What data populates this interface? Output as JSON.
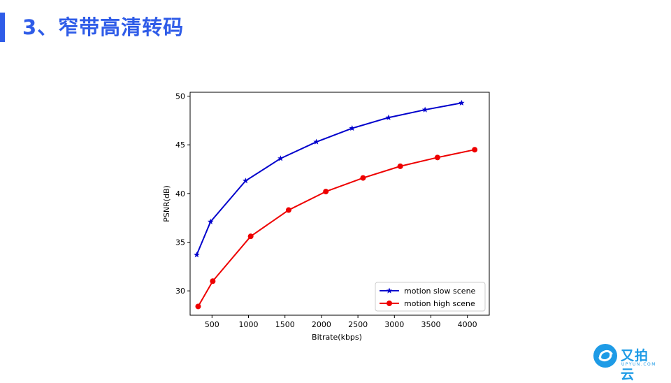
{
  "slide": {
    "title": "3、窄带高清转码"
  },
  "logo": {
    "name": "又拍云",
    "sub": "UPYUN.COM"
  },
  "chart_data": {
    "type": "line",
    "xlabel": "Bitrate(kbps)",
    "ylabel": "PSNR(dB)",
    "xlim": [
      200,
      4300
    ],
    "ylim": [
      27.5,
      50.4
    ],
    "xticks": [
      500,
      1000,
      1500,
      2000,
      2500,
      3000,
      3500,
      4000
    ],
    "yticks": [
      30,
      35,
      40,
      45,
      50
    ],
    "grid": false,
    "legend_position": "lower-right",
    "series": [
      {
        "name": "motion slow scene",
        "color": "#0000cc",
        "marker": "star",
        "x": [
          290,
          480,
          960,
          1440,
          1930,
          2420,
          2920,
          3420,
          3920
        ],
        "y": [
          33.7,
          37.1,
          41.3,
          43.6,
          45.3,
          46.7,
          47.8,
          48.6,
          49.3
        ]
      },
      {
        "name": "motion high scene",
        "color": "#ee0000",
        "marker": "circle",
        "x": [
          310,
          510,
          1030,
          1550,
          2060,
          2570,
          3080,
          3590,
          4100
        ],
        "y": [
          28.4,
          31.0,
          35.6,
          38.3,
          40.2,
          41.6,
          42.8,
          43.7,
          44.5
        ]
      }
    ]
  }
}
